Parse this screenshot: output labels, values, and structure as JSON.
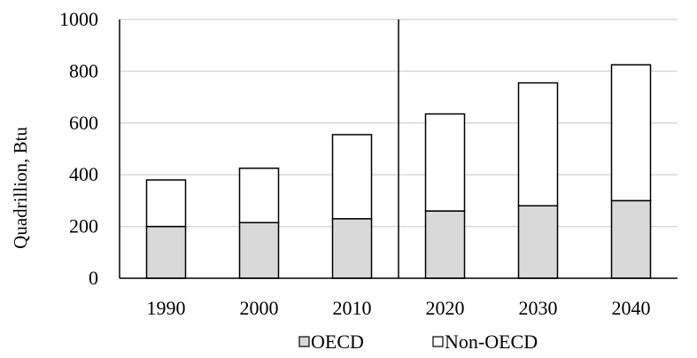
{
  "chart_data": {
    "type": "bar",
    "stacked": true,
    "categories": [
      "1990",
      "2000",
      "2010",
      "2020",
      "2030",
      "2040"
    ],
    "series": [
      {
        "name": "OECD",
        "values": [
          200,
          215,
          230,
          260,
          280,
          300
        ],
        "color": "#d9d9d9"
      },
      {
        "name": "Non-OECD",
        "values": [
          180,
          210,
          325,
          375,
          475,
          525
        ],
        "color": "#ffffff"
      }
    ],
    "title": "",
    "xlabel": "",
    "ylabel": "Quadrillion, Btu",
    "ylim": [
      0,
      1000
    ],
    "yticks": [
      0,
      200,
      400,
      600,
      800,
      1000
    ],
    "grid": true,
    "gridColor": "#d9d9d9",
    "barStroke": "#000000",
    "divider_after_category": "2010",
    "legend": {
      "position": "bottom",
      "entries": [
        "OECD",
        "Non-OECD"
      ]
    }
  }
}
